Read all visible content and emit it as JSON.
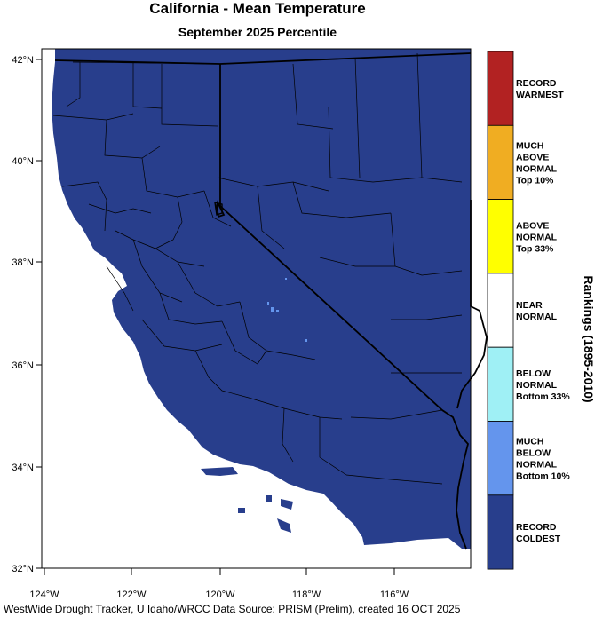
{
  "title": "California - Mean Temperature",
  "subtitle": "September 2025 Percentile",
  "footer": "WestWide Drought Tracker, U Idaho/WRCC Data Source: PRISM (Prelim), created 16 OCT 2025",
  "map": {
    "fill_color": "#283e8c",
    "ocean_color": "#ffffff",
    "lat_ticks": [
      "42°N",
      "40°N",
      "38°N",
      "36°N",
      "34°N",
      "32°N"
    ],
    "lon_ticks": [
      "124°W",
      "122°W",
      "120°W",
      "118°W",
      "116°W"
    ],
    "lat_range": [
      32,
      42.2
    ],
    "lon_range": [
      -124.3,
      -114.2
    ]
  },
  "legend": {
    "title": "Rankings (1895-2010)",
    "categories": [
      {
        "lines": [
          "RECORD",
          "WARMEST"
        ],
        "color": "#b22222"
      },
      {
        "lines": [
          "MUCH",
          "ABOVE",
          "NORMAL",
          "Top 10%"
        ],
        "color": "#f0ad22"
      },
      {
        "lines": [
          "ABOVE",
          "NORMAL",
          "Top 33%"
        ],
        "color": "#ffff00"
      },
      {
        "lines": [
          "NEAR",
          "NORMAL"
        ],
        "color": "#ffffff"
      },
      {
        "lines": [
          "BELOW",
          "NORMAL",
          "Bottom 33%"
        ],
        "color": "#9ff0f5"
      },
      {
        "lines": [
          "MUCH",
          "BELOW",
          "NORMAL",
          "Bottom 10%"
        ],
        "color": "#6495ed"
      },
      {
        "lines": [
          "RECORD",
          "COLDEST"
        ],
        "color": "#283e8c"
      }
    ]
  }
}
